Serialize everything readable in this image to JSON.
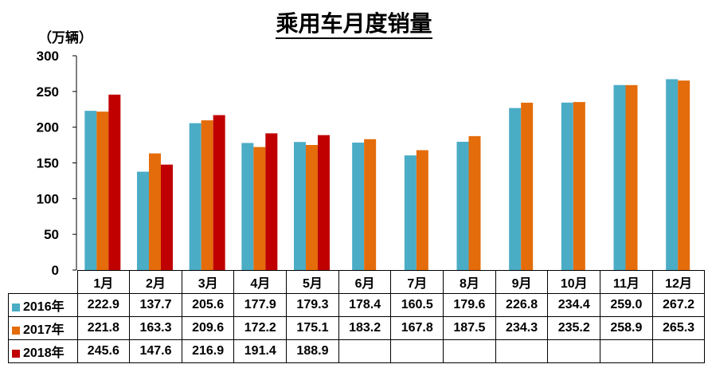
{
  "title": "乘用车月度销量",
  "unit": "（万辆）",
  "chart_data": {
    "type": "bar",
    "title": "乘用车月度销量",
    "ylabel": "（万辆）",
    "ylim": [
      0,
      300
    ],
    "yticks": [
      0,
      50,
      100,
      150,
      200,
      250,
      300
    ],
    "categories": [
      "1月",
      "2月",
      "3月",
      "4月",
      "5月",
      "6月",
      "7月",
      "8月",
      "9月",
      "10月",
      "11月",
      "12月"
    ],
    "series": [
      {
        "name": "2016年",
        "color": "#4bacc6",
        "values": [
          222.9,
          137.7,
          205.6,
          177.9,
          179.3,
          178.4,
          160.5,
          179.6,
          226.8,
          234.4,
          259.0,
          267.2
        ]
      },
      {
        "name": "2017年",
        "color": "#e46c0a",
        "values": [
          221.8,
          163.3,
          209.6,
          172.2,
          175.1,
          183.2,
          167.8,
          187.5,
          234.3,
          235.2,
          258.9,
          265.3
        ]
      },
      {
        "name": "2018年",
        "color": "#c00000",
        "values": [
          245.6,
          147.6,
          216.9,
          191.4,
          188.9,
          null,
          null,
          null,
          null,
          null,
          null,
          null
        ]
      }
    ],
    "table_values": [
      [
        "222.9",
        "137.7",
        "205.6",
        "177.9",
        "179.3",
        "178.4",
        "160.5",
        "179.6",
        "226.8",
        "234.4",
        "259.0",
        "267.2"
      ],
      [
        "221.8",
        "163.3",
        "209.6",
        "172.2",
        "175.1",
        "183.2",
        "167.8",
        "187.5",
        "234.3",
        "235.2",
        "258.9",
        "265.3"
      ],
      [
        "245.6",
        "147.6",
        "216.9",
        "191.4",
        "188.9",
        "",
        "",
        "",
        "",
        "",
        "",
        ""
      ]
    ],
    "legend_placement": "data-table-below",
    "grid": false
  }
}
